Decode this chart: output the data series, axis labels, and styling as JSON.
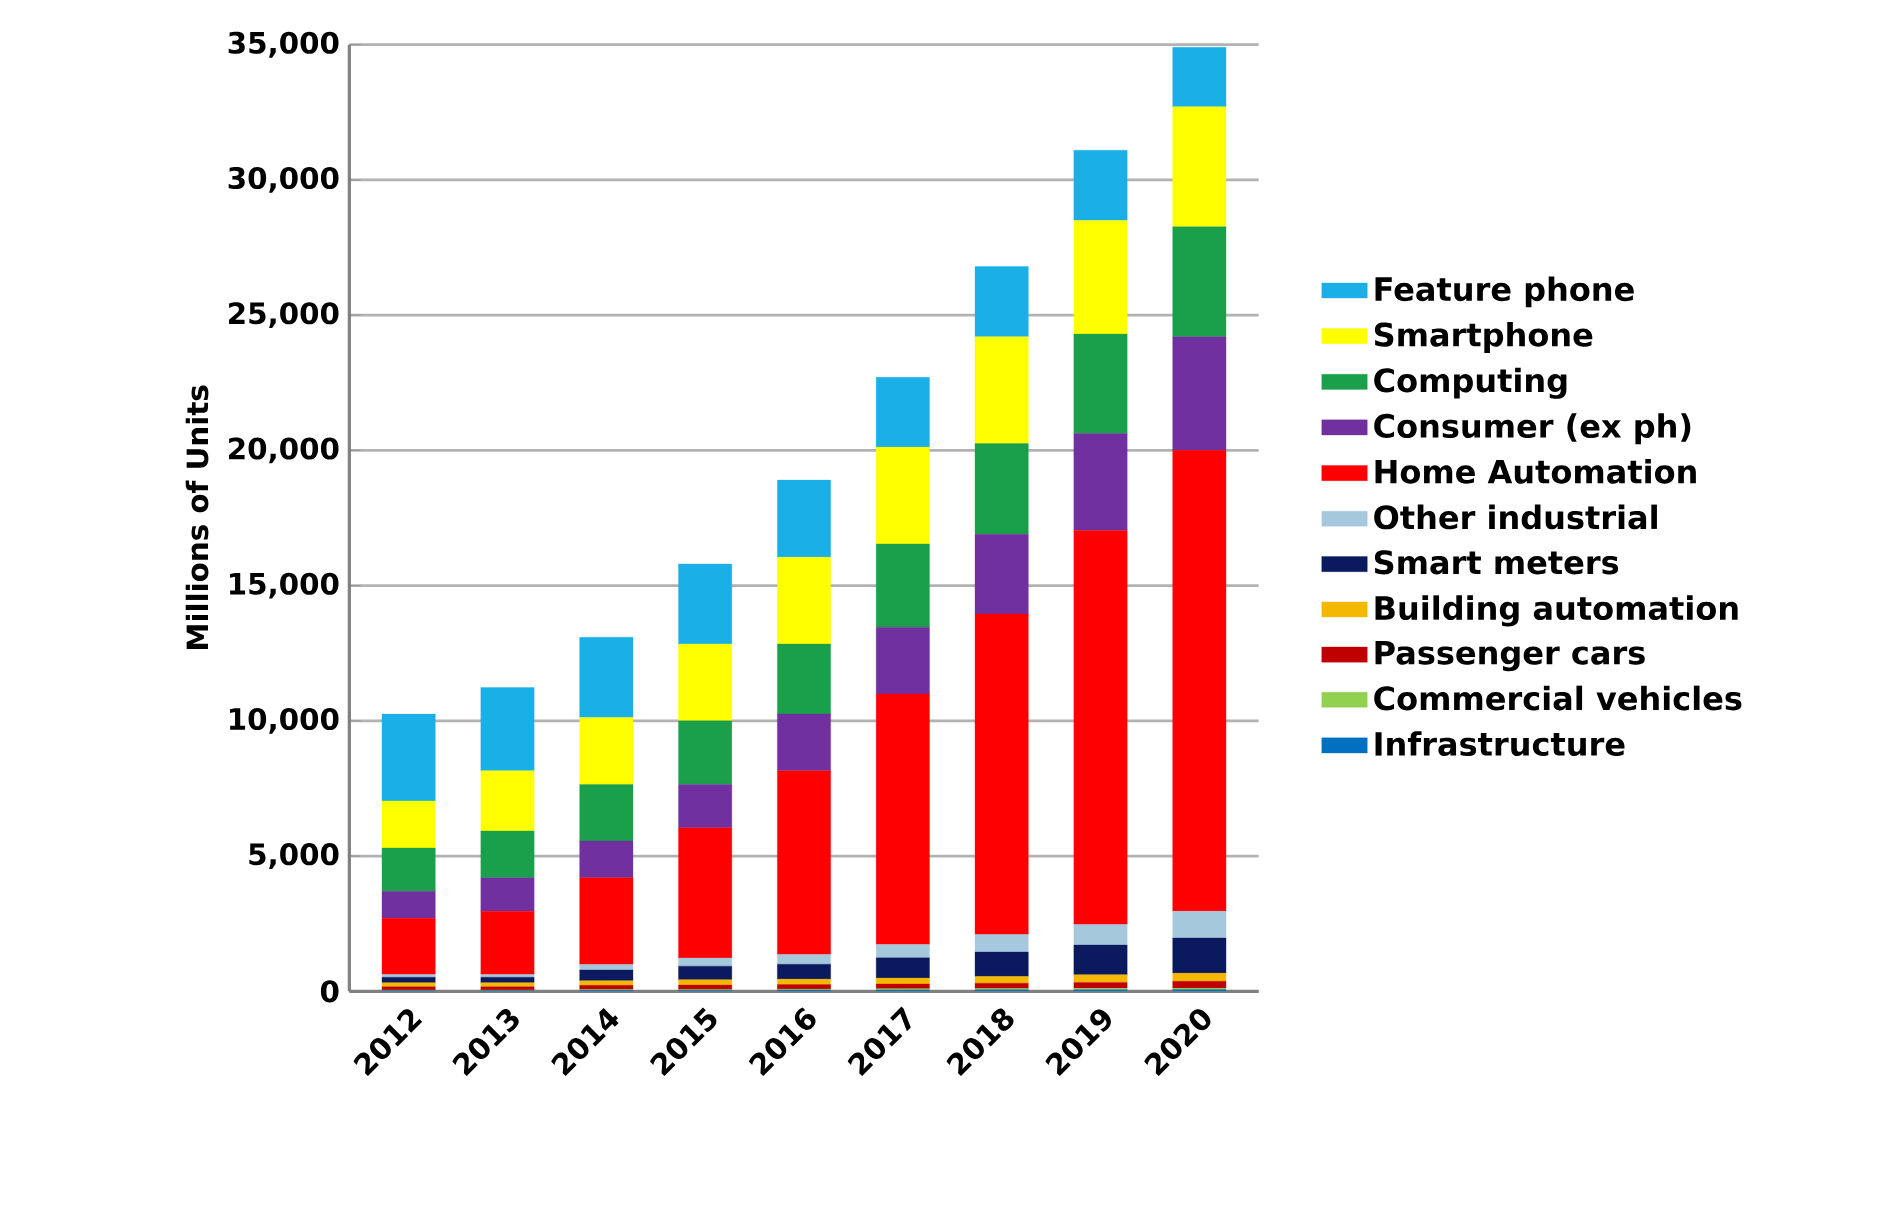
{
  "chart_data": {
    "type": "bar",
    "stacked": true,
    "ylabel": "Millions of Units",
    "categories": [
      "2012",
      "2013",
      "2014",
      "2015",
      "2016",
      "2017",
      "2018",
      "2019",
      "2020"
    ],
    "series": [
      {
        "name": "Infrastructure",
        "color": "#0070c0",
        "values": [
          30,
          30,
          40,
          40,
          50,
          50,
          60,
          60,
          70
        ]
      },
      {
        "name": "Commercial vehicles",
        "color": "#92d050",
        "values": [
          20,
          20,
          30,
          30,
          30,
          40,
          40,
          50,
          50
        ]
      },
      {
        "name": "Passenger cars",
        "color": "#c00000",
        "values": [
          120,
          120,
          150,
          160,
          170,
          180,
          200,
          220,
          250
        ]
      },
      {
        "name": "Building automation",
        "color": "#f5b800",
        "values": [
          150,
          150,
          170,
          200,
          200,
          220,
          250,
          280,
          300
        ]
      },
      {
        "name": "Smart meters",
        "color": "#0b1a5e",
        "values": [
          200,
          200,
          400,
          500,
          550,
          750,
          900,
          1100,
          1300
        ]
      },
      {
        "name": "Other industrial",
        "color": "#a6c8dc",
        "values": [
          100,
          100,
          200,
          300,
          360,
          490,
          650,
          760,
          990
        ]
      },
      {
        "name": "Home Automation",
        "color": "#ff0000",
        "values": [
          2080,
          2340,
          3210,
          4820,
          6790,
          9260,
          11850,
          14570,
          17040
        ]
      },
      {
        "name": "Consumer (ex ph)",
        "color": "#7030a0",
        "values": [
          1000,
          1240,
          1360,
          1600,
          2100,
          2470,
          2950,
          3580,
          4200
        ]
      },
      {
        "name": "Computing",
        "color": "#1aa04a",
        "values": [
          1600,
          1730,
          2090,
          2350,
          2590,
          3080,
          3350,
          3680,
          4070
        ]
      },
      {
        "name": "Smartphone",
        "color": "#ffff00",
        "values": [
          1740,
          2220,
          2470,
          2840,
          3210,
          3580,
          3950,
          4200,
          4430
        ]
      },
      {
        "name": "Feature phone",
        "color": "#1aafe6",
        "values": [
          3210,
          3080,
          2970,
          2960,
          2850,
          2580,
          2600,
          2600,
          2200
        ]
      }
    ],
    "ylim": [
      0,
      35000
    ],
    "yticks": [
      0,
      {
        "value": 5000,
        "label": "5,000"
      },
      {
        "value": 10000,
        "label": "10,000"
      },
      {
        "value": 15000,
        "label": "15,000"
      },
      {
        "value": 20000,
        "label": "20,000"
      },
      {
        "value": 25000,
        "label": "25,000"
      },
      {
        "value": 30000,
        "label": "30,000"
      },
      {
        "value": 35000,
        "label": "35,000"
      }
    ],
    "grid": "y",
    "legend": "right"
  }
}
